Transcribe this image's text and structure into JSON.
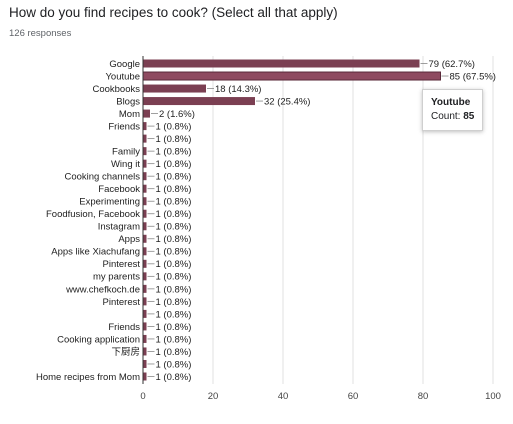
{
  "question": {
    "title": "How do you find recipes to cook? (Select all that apply)",
    "responses": "126 responses"
  },
  "tooltip": {
    "name": "Youtube",
    "count_label": "Count:",
    "count_value": "85"
  },
  "colors": {
    "bar": "#7b3f52",
    "bar_highlight": "#8e4a60",
    "grid": "#e0e0e0",
    "axis": "#333333",
    "leader": "#888888"
  },
  "chart_data": {
    "type": "bar",
    "orientation": "horizontal",
    "title": "",
    "xlabel": "",
    "ylabel": "",
    "xlim": [
      0,
      100
    ],
    "xticks": [
      0,
      20,
      40,
      60,
      80,
      100
    ],
    "grid": true,
    "highlighted": "Youtube",
    "categories": [
      "Google",
      "Youtube",
      "Cookbooks",
      "Blogs",
      "Mom",
      "Friends",
      "",
      "Family",
      "Wing it",
      "Cooking channels",
      "Facebook",
      "Experimenting",
      "Foodfusion, Facebook",
      "Instagram",
      "Apps",
      "Apps like Xiachufang",
      "Pinterest",
      "my parents",
      "www.chefkoch.de",
      "Pinterest",
      "",
      "Friends",
      "Cooking application",
      "下厨房",
      "",
      "Home recipes from Mom"
    ],
    "values": [
      79,
      85,
      18,
      32,
      2,
      1,
      1,
      1,
      1,
      1,
      1,
      1,
      1,
      1,
      1,
      1,
      1,
      1,
      1,
      1,
      1,
      1,
      1,
      1,
      1,
      1
    ],
    "data_labels": [
      "79 (62.7%)",
      "85 (67.5%)",
      "18 (14.3%)",
      "32 (25.4%)",
      "2 (1.6%)",
      "1 (0.8%)",
      "1 (0.8%)",
      "1 (0.8%)",
      "1 (0.8%)",
      "1 (0.8%)",
      "1 (0.8%)",
      "1 (0.8%)",
      "1 (0.8%)",
      "1 (0.8%)",
      "1 (0.8%)",
      "1 (0.8%)",
      "1 (0.8%)",
      "1 (0.8%)",
      "1 (0.8%)",
      "1 (0.8%)",
      "1 (0.8%)",
      "1 (0.8%)",
      "1 (0.8%)",
      "1 (0.8%)",
      "1 (0.8%)",
      "1 (0.8%)"
    ]
  }
}
